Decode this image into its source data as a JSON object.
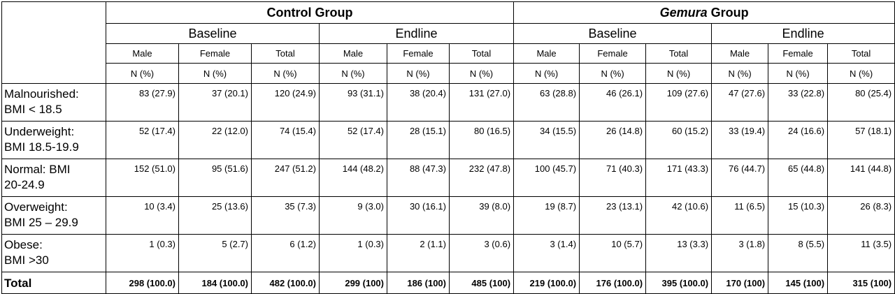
{
  "groups": [
    {
      "label_plain": "Control Group",
      "label_italic": "",
      "label_rest": ""
    },
    {
      "label_plain": "",
      "label_italic": "Gemura",
      "label_rest": " Group"
    }
  ],
  "phases": [
    "Baseline",
    "Endline",
    "Baseline",
    "Endline"
  ],
  "sexes": [
    "Male",
    "Female",
    "Total",
    "Male",
    "Female",
    "Total",
    "Male",
    "Female",
    "Total",
    "Male",
    "Female",
    "Total"
  ],
  "unit": "N (%)",
  "rows": [
    {
      "label_line1": "Malnourished:",
      "label_line2": "BMI < 18.5",
      "values": [
        "83 (27.9)",
        "37 (20.1)",
        "120 (24.9)",
        "93 (31.1)",
        "38 (20.4)",
        "131 (27.0)",
        "63 (28.8)",
        "46 (26.1)",
        "109 (27.6)",
        "47 (27.6)",
        "33 (22.8)",
        "80 (25.4)"
      ]
    },
    {
      "label_line1": "Underweight:",
      "label_line2": "BMI 18.5-19.9",
      "values": [
        "52 (17.4)",
        "22 (12.0)",
        "74 (15.4)",
        "52 (17.4)",
        "28 (15.1)",
        "80 (16.5)",
        "34 (15.5)",
        "26 (14.8)",
        "60 (15.2)",
        "33 (19.4)",
        "24 (16.6)",
        "57 (18.1)"
      ]
    },
    {
      "label_line1": "Normal: BMI",
      "label_line2": "20-24.9",
      "values": [
        "152 (51.0)",
        "95 (51.6)",
        "247 (51.2)",
        "144 (48.2)",
        "88 (47.3)",
        "232 (47.8)",
        "100 (45.7)",
        "71 (40.3)",
        "171 (43.3)",
        "76 (44.7)",
        "65 (44.8)",
        "141 (44.8)"
      ]
    },
    {
      "label_line1": "Overweight:",
      "label_line2": "BMI 25 – 29.9",
      "values": [
        "10 (3.4)",
        "25 (13.6)",
        "35 (7.3)",
        "9 (3.0)",
        "30 (16.1)",
        "39 (8.0)",
        "19 (8.7)",
        "23 (13.1)",
        "42 (10.6)",
        "11 (6.5)",
        "15 (10.3)",
        "26 (8.3)"
      ]
    },
    {
      "label_line1": "Obese:",
      "label_line2": "BMI >30",
      "values": [
        "1 (0.3)",
        "5 (2.7)",
        "6 (1.2)",
        "1 (0.3)",
        "2 (1.1)",
        "3 (0.6)",
        "3 (1.4)",
        "10 (5.7)",
        "13 (3.3)",
        "3 (1.8)",
        "8 (5.5)",
        "11 (3.5)"
      ]
    }
  ],
  "total": {
    "label": "Total",
    "values": [
      "298 (100.0)",
      "184 (100.0)",
      "482 (100.0)",
      "299 (100)",
      "186 (100)",
      "485 (100)",
      "219 (100.0)",
      "176 (100.0)",
      "395 (100.0)",
      "170 (100)",
      "145 (100)",
      "315 (100)"
    ]
  }
}
